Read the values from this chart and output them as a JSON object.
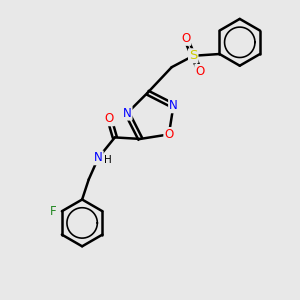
{
  "background_color": "#e8e8e8",
  "bond_color": "#000000",
  "bond_width": 1.8,
  "atom_colors": {
    "N": "#0000ff",
    "O": "#ff0000",
    "S": "#cccc00",
    "F": "#228822",
    "C": "#000000",
    "H": "#000000"
  },
  "font_size": 8.5,
  "fig_width": 3.0,
  "fig_height": 3.0,
  "dpi": 100
}
